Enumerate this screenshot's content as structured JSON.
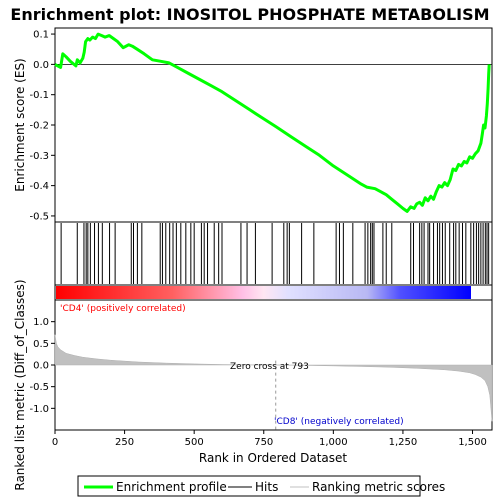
{
  "chart_data": {
    "type": "line",
    "title": "Enrichment plot: INOSITOL PHOSPHATE METABOLISM",
    "n_genes": 1570,
    "es_panel": {
      "ylabel": "Enrichment score (ES)",
      "ylim": [
        -0.52,
        0.12
      ],
      "yticks": [
        0.1,
        0.0,
        -0.1,
        -0.2,
        -0.3,
        -0.4,
        -0.5
      ],
      "ytick_labels": [
        "0.1",
        "0.0",
        "-0.1",
        "-0.2",
        "-0.3",
        "-0.4",
        "-0.5"
      ],
      "series": [
        {
          "name": "Enrichment profile",
          "color": "#00ff00",
          "x": [
            0,
            10,
            20,
            28,
            40,
            55,
            75,
            80,
            90,
            100,
            105,
            110,
            118,
            125,
            135,
            145,
            155,
            168,
            180,
            195,
            210,
            225,
            245,
            265,
            278,
            295,
            320,
            350,
            380,
            410,
            440,
            480,
            520,
            560,
            600,
            650,
            700,
            750,
            793,
            850,
            900,
            950,
            1000,
            1050,
            1100,
            1120,
            1150,
            1170,
            1190,
            1210,
            1230,
            1250,
            1265,
            1278,
            1290,
            1300,
            1310,
            1320,
            1330,
            1340,
            1350,
            1360,
            1370,
            1380,
            1390,
            1400,
            1410,
            1420,
            1430,
            1440,
            1450,
            1460,
            1470,
            1480,
            1490,
            1500,
            1510,
            1520,
            1530,
            1535,
            1540,
            1545,
            1550,
            1553,
            1556,
            1558,
            1560
          ],
          "y": [
            0.0,
            -0.005,
            -0.01,
            0.035,
            0.025,
            0.01,
            -0.005,
            0.015,
            0.005,
            0.02,
            0.04,
            0.075,
            0.085,
            0.08,
            0.09,
            0.085,
            0.1,
            0.095,
            0.09,
            0.095,
            0.085,
            0.075,
            0.055,
            0.065,
            0.06,
            0.05,
            0.035,
            0.015,
            0.01,
            0.005,
            -0.01,
            -0.03,
            -0.05,
            -0.07,
            -0.09,
            -0.12,
            -0.15,
            -0.18,
            -0.205,
            -0.24,
            -0.27,
            -0.3,
            -0.335,
            -0.365,
            -0.395,
            -0.405,
            -0.41,
            -0.42,
            -0.43,
            -0.445,
            -0.46,
            -0.475,
            -0.485,
            -0.47,
            -0.475,
            -0.46,
            -0.455,
            -0.465,
            -0.44,
            -0.45,
            -0.435,
            -0.445,
            -0.42,
            -0.4,
            -0.405,
            -0.39,
            -0.4,
            -0.38,
            -0.345,
            -0.35,
            -0.33,
            -0.335,
            -0.32,
            -0.325,
            -0.305,
            -0.31,
            -0.295,
            -0.285,
            -0.26,
            -0.23,
            -0.2,
            -0.21,
            -0.17,
            -0.13,
            -0.08,
            -0.03,
            0.0
          ]
        }
      ]
    },
    "hits": [
      22,
      80,
      104,
      112,
      118,
      127,
      142,
      156,
      170,
      196,
      216,
      274,
      282,
      296,
      312,
      378,
      386,
      398,
      412,
      424,
      436,
      452,
      470,
      488,
      500,
      526,
      536,
      548,
      572,
      588,
      600,
      668,
      690,
      720,
      780,
      822,
      834,
      842,
      886,
      930,
      1010,
      1022,
      1036,
      1070,
      1114,
      1124,
      1134,
      1140,
      1146,
      1178,
      1190,
      1210,
      1278,
      1288,
      1310,
      1318,
      1326,
      1340,
      1346,
      1360,
      1374,
      1382,
      1392,
      1402,
      1418,
      1432,
      1440,
      1452,
      1464,
      1476,
      1494,
      1504,
      1514,
      1522,
      1530,
      1538,
      1546,
      1552,
      1558
    ],
    "hits_legend": "Hits",
    "heat_bar": {
      "pos_color": "#ff0000",
      "neg_color": "#0000ff"
    },
    "metric_panel": {
      "ylabel": "Ranked list metric (Diff_of_Classes)",
      "xlabel": "Rank in Ordered Dataset",
      "ylim": [
        -1.5,
        1.5
      ],
      "yticks": [
        1.0,
        0.5,
        0.0,
        -0.5,
        -1.0
      ],
      "ytick_labels": [
        "1.0",
        "0.5",
        "0.0",
        "-0.5",
        "-1.0"
      ],
      "xticks": [
        0,
        250,
        500,
        750,
        1000,
        1250,
        1500
      ],
      "xtick_labels": [
        "0",
        "250",
        "500",
        "750",
        "1,000",
        "1,250",
        "1,500"
      ],
      "series": [
        {
          "name": "Ranking metric scores",
          "color": "#c0c0c0",
          "x": [
            0,
            5,
            10,
            20,
            40,
            70,
            100,
            150,
            200,
            300,
            400,
            500,
            600,
            700,
            793,
            900,
            1000,
            1100,
            1200,
            1300,
            1400,
            1450,
            1490,
            1510,
            1530,
            1545,
            1555,
            1562,
            1566,
            1570
          ],
          "y": [
            0.7,
            0.5,
            0.42,
            0.35,
            0.27,
            0.22,
            0.18,
            0.14,
            0.11,
            0.07,
            0.045,
            0.025,
            0.012,
            0.005,
            0.0,
            -0.01,
            -0.02,
            -0.035,
            -0.05,
            -0.075,
            -0.11,
            -0.14,
            -0.18,
            -0.22,
            -0.28,
            -0.36,
            -0.5,
            -0.7,
            -1.0,
            -1.3
          ]
        }
      ]
    },
    "annotations": {
      "pos_label": "'CD4' (positively correlated)",
      "neg_label": "'CD8' (negatively correlated)",
      "zero_cross": "Zero cross at 793",
      "zero_cross_rank": 793,
      "pos_color": "#ff0000",
      "neg_color": "#0000cc"
    },
    "legend": {
      "placement": "bottom",
      "entries": [
        {
          "label": "Enrichment profile",
          "color": "#00ff00"
        },
        {
          "label": "Hits",
          "color": "#000000"
        },
        {
          "label": "Ranking metric scores",
          "color": "#c0c0c0"
        }
      ]
    }
  }
}
